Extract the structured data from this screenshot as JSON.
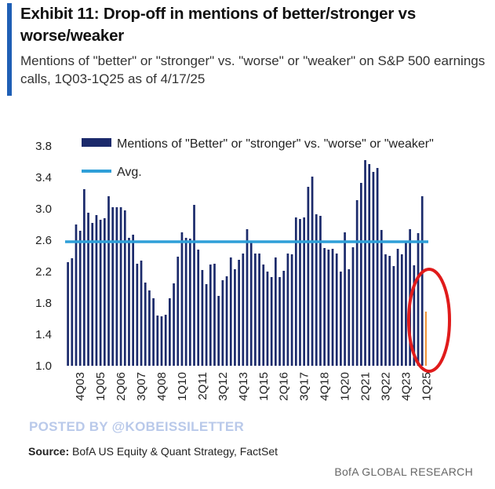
{
  "header": {
    "title": "Exhibit 11: Drop-off in mentions of better/stronger vs worse/weaker",
    "subtitle": "Mentions of \"better\" or \"stronger\" vs. \"worse\" or \"weaker\" on S&P 500 earnings calls, 1Q03-1Q25 as of 4/17/25"
  },
  "watermark": "POSTED BY @KOBEISSILETTER",
  "footer": {
    "source_label": "Source:",
    "source_text": "BofA US Equity & Quant Strategy, FactSet",
    "brand": "BofA GLOBAL RESEARCH"
  },
  "colors": {
    "bar": "#1b2a6b",
    "avg_line": "#2f9fd8",
    "last_bar": "#f08a24",
    "highlight_circle": "#e01b1b",
    "accent": "#1f5fb5"
  },
  "chart_data": {
    "type": "bar",
    "title": "Mentions of \"better\" or \"stronger\" vs. \"worse\" or \"weaker\" on S&P 500 earnings calls",
    "legend": [
      {
        "name": "Mentions of \"Better\" or \"stronger\" vs. \"worse\" or \"weaker\"",
        "kind": "bar"
      },
      {
        "name": "Avg.",
        "kind": "line"
      }
    ],
    "legend_position": "top-right",
    "ylim": [
      1.0,
      3.8
    ],
    "yticks": [
      "3.8",
      "3.4",
      "3.0",
      "2.6",
      "2.2",
      "1.8",
      "1.4",
      "1.0"
    ],
    "ytick_values": [
      3.8,
      3.4,
      3.0,
      2.6,
      2.2,
      1.8,
      1.4,
      1.0
    ],
    "xtick_labels": [
      "4Q03",
      "1Q05",
      "2Q06",
      "3Q07",
      "4Q08",
      "1Q10",
      "2Q11",
      "3Q12",
      "4Q13",
      "1Q15",
      "2Q16",
      "3Q17",
      "4Q18",
      "1Q20",
      "2Q21",
      "3Q22",
      "4Q23",
      "1Q25"
    ],
    "average": 2.58,
    "categories": [
      "1Q03",
      "2Q03",
      "3Q03",
      "4Q03",
      "1Q04",
      "2Q04",
      "3Q04",
      "4Q04",
      "1Q05",
      "2Q05",
      "3Q05",
      "4Q05",
      "1Q06",
      "2Q06",
      "3Q06",
      "4Q06",
      "1Q07",
      "2Q07",
      "3Q07",
      "4Q07",
      "1Q08",
      "2Q08",
      "3Q08",
      "4Q08",
      "1Q09",
      "2Q09",
      "3Q09",
      "4Q09",
      "1Q10",
      "2Q10",
      "3Q10",
      "4Q10",
      "1Q11",
      "2Q11",
      "3Q11",
      "4Q11",
      "1Q12",
      "2Q12",
      "3Q12",
      "4Q12",
      "1Q13",
      "2Q13",
      "3Q13",
      "4Q13",
      "1Q14",
      "2Q14",
      "3Q14",
      "4Q14",
      "1Q15",
      "2Q15",
      "3Q15",
      "4Q15",
      "1Q16",
      "2Q16",
      "3Q16",
      "4Q16",
      "1Q17",
      "2Q17",
      "3Q17",
      "4Q17",
      "1Q18",
      "2Q18",
      "3Q18",
      "4Q18",
      "1Q19",
      "2Q19",
      "3Q19",
      "4Q19",
      "1Q20",
      "2Q20",
      "3Q20",
      "4Q20",
      "1Q21",
      "2Q21",
      "3Q21",
      "4Q21",
      "1Q22",
      "2Q22",
      "3Q22",
      "4Q22",
      "1Q23",
      "2Q23",
      "3Q23",
      "4Q23",
      "1Q24",
      "2Q24",
      "3Q24",
      "4Q24",
      "1Q25"
    ],
    "values": [
      2.32,
      2.37,
      2.8,
      2.72,
      3.25,
      2.95,
      2.82,
      2.92,
      2.86,
      2.88,
      3.16,
      3.02,
      3.02,
      3.02,
      2.98,
      2.63,
      2.67,
      2.3,
      2.34,
      2.06,
      1.96,
      1.86,
      1.64,
      1.63,
      1.65,
      1.86,
      2.05,
      2.39,
      2.7,
      2.63,
      2.62,
      3.05,
      2.48,
      2.22,
      2.04,
      2.29,
      2.3,
      1.89,
      2.09,
      2.14,
      2.38,
      2.23,
      2.35,
      2.43,
      2.74,
      2.58,
      2.43,
      2.43,
      2.29,
      2.2,
      2.13,
      2.38,
      2.13,
      2.21,
      2.43,
      2.42,
      2.89,
      2.87,
      2.89,
      3.28,
      3.41,
      2.93,
      2.91,
      2.5,
      2.48,
      2.49,
      2.43,
      2.2,
      2.7,
      2.23,
      2.51,
      3.11,
      3.33,
      3.62,
      3.57,
      3.47,
      3.52,
      2.73,
      2.42,
      2.4,
      2.27,
      2.49,
      2.42,
      2.58,
      2.74,
      2.28,
      2.69,
      3.16,
      1.69
    ],
    "highlight_index": 88
  }
}
